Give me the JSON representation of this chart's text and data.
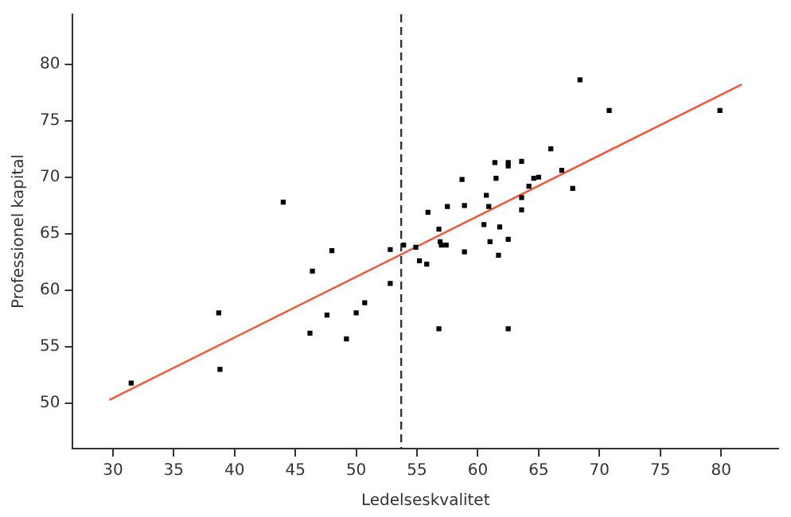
{
  "chart_data": {
    "type": "scatter",
    "xlabel": "Ledelseskvalitet",
    "ylabel": "Professionel kapital",
    "xlim": [
      26.7,
      84.7
    ],
    "xticks": [
      30,
      35,
      40,
      45,
      50,
      55,
      60,
      65,
      70,
      75,
      80
    ],
    "ylim": [
      46,
      84.4
    ],
    "yticks": [
      50,
      55,
      60,
      65,
      70,
      75,
      80
    ],
    "grid": false,
    "marker": "square",
    "ref_lines": [
      {
        "axis": "x",
        "value": 53.7,
        "color": "#333333",
        "line_style": "dashed"
      }
    ],
    "series": [
      {
        "type": "scatter",
        "color": "#000000",
        "x": [
          31.5,
          38.7,
          38.8,
          44.0,
          46.2,
          46.4,
          47.6,
          48.0,
          49.2,
          50.0,
          50.7,
          52.8,
          52.8,
          53.9,
          54.9,
          55.2,
          55.8,
          55.9,
          56.8,
          56.8,
          56.9,
          57.0,
          57.4,
          57.5,
          58.7,
          58.9,
          58.9,
          60.5,
          60.7,
          60.9,
          61.0,
          61.4,
          61.5,
          61.7,
          61.8,
          62.5,
          62.5,
          62.5,
          62.5,
          63.6,
          63.6,
          63.6,
          64.2,
          64.6,
          65.0,
          66.0,
          66.9,
          67.8,
          68.4,
          70.8,
          79.9
        ],
        "values": [
          51.8,
          58.0,
          53.0,
          67.8,
          56.2,
          61.7,
          57.8,
          63.5,
          55.7,
          58.0,
          58.9,
          63.6,
          60.6,
          64.0,
          63.8,
          62.6,
          62.3,
          66.9,
          56.6,
          65.4,
          64.3,
          64.0,
          64.0,
          67.4,
          69.8,
          67.5,
          63.4,
          65.8,
          68.4,
          67.4,
          64.3,
          71.3,
          69.9,
          63.1,
          65.6,
          71.3,
          71.0,
          64.5,
          56.6,
          71.4,
          68.2,
          67.1,
          69.2,
          69.9,
          70.0,
          72.5,
          70.6,
          69.0,
          78.6,
          75.9,
          75.9
        ]
      },
      {
        "type": "line",
        "color": "#f05a3c",
        "marker": "none",
        "x": [
          29.7,
          81.7
        ],
        "values": [
          50.3,
          78.2
        ]
      }
    ]
  }
}
